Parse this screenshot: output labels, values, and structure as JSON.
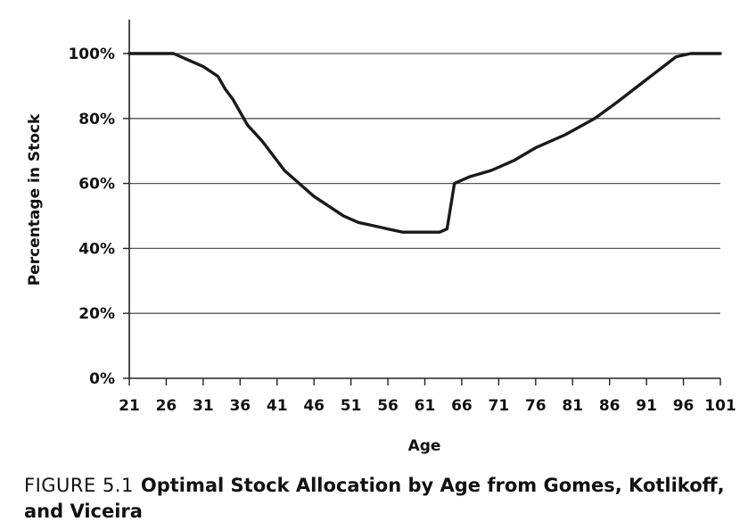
{
  "figure": {
    "label": "FIGURE 5.1",
    "title": "Optimal Stock Allocation by Age from Gomes, Kotlikoff, and Viceira"
  },
  "chart_data": {
    "type": "line",
    "title": "",
    "xlabel": "Age",
    "ylabel": "Percentage in Stock",
    "xlim": [
      21,
      101
    ],
    "ylim": [
      0,
      100
    ],
    "x_ticks": [
      21,
      26,
      31,
      36,
      41,
      46,
      51,
      56,
      61,
      66,
      71,
      76,
      81,
      86,
      91,
      96,
      101
    ],
    "y_ticks": [
      0,
      20,
      40,
      60,
      80,
      100
    ],
    "y_tick_labels": [
      "0%",
      "20%",
      "40%",
      "60%",
      "80%",
      "100%"
    ],
    "grid": "horizontal",
    "line_color": "#1a1a1a",
    "series": [
      {
        "x": [
          21,
          27,
          29,
          31,
          33,
          34,
          35,
          37,
          39,
          41,
          42,
          44,
          46,
          48,
          50,
          52,
          54,
          56,
          58,
          60,
          62,
          63,
          64,
          65,
          67,
          70,
          73,
          76,
          80,
          84,
          87,
          91,
          95,
          97,
          101
        ],
        "y": [
          100,
          100,
          98,
          96,
          93,
          89,
          86,
          78,
          73,
          67,
          64,
          60,
          56,
          53,
          50,
          48,
          47,
          46,
          45,
          45,
          45,
          45,
          46,
          60,
          62,
          64,
          67,
          71,
          75,
          80,
          85,
          92,
          99,
          100,
          100
        ]
      }
    ]
  }
}
